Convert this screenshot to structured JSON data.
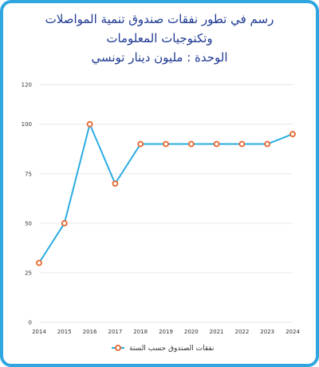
{
  "title_lines": [
    "رسم في تطور نفقات صندوق تنمية المواصلات",
    "وتكنوجيات المعلومات",
    "الوحدة : مليون دينار تونسي"
  ],
  "colors": {
    "border": "#2fa6df",
    "title": "#1f3a93",
    "line": "#29abe2",
    "marker_stroke": "#e8642c",
    "marker_fill": "#ffffff",
    "grid": "#e6e6e6"
  },
  "chart_data": {
    "type": "line",
    "x": [
      "2014",
      "2015",
      "2016",
      "2017",
      "2018",
      "2019",
      "2020",
      "2021",
      "2022",
      "2023",
      "2024"
    ],
    "series": [
      {
        "name": "نفقات الصندوق حسب السنة",
        "values": [
          30,
          50,
          100,
          70,
          90,
          90,
          90,
          90,
          90,
          90,
          95
        ]
      }
    ],
    "ylim": [
      0,
      120
    ],
    "yticks": [
      0,
      25,
      50,
      75,
      100,
      120
    ],
    "grid": true,
    "legend": "bottom-center"
  }
}
